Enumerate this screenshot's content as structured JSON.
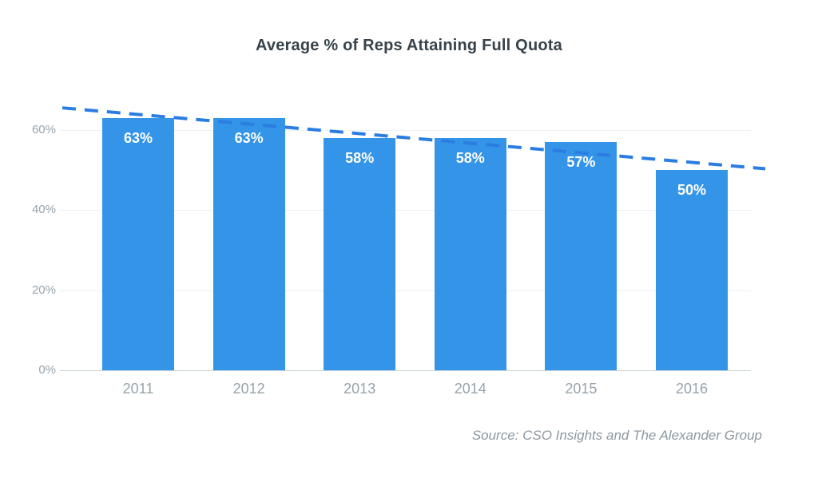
{
  "chart_data": {
    "type": "bar",
    "title": "Average % of Reps Attaining Full Quota",
    "categories": [
      "2011",
      "2012",
      "2013",
      "2014",
      "2015",
      "2016"
    ],
    "values": [
      63,
      63,
      58,
      58,
      57,
      50
    ],
    "bar_labels": [
      "63%",
      "63%",
      "58%",
      "58%",
      "57%",
      "50%"
    ],
    "y_ticks": [
      {
        "value": 60,
        "label": "60%"
      },
      {
        "value": 40,
        "label": "40%"
      },
      {
        "value": 20,
        "label": "20%"
      },
      {
        "value": 0,
        "label": "0%"
      }
    ],
    "ylim": [
      0,
      70
    ],
    "xlabel": "",
    "ylabel": "",
    "grid": "horizontal",
    "legend": "none",
    "trendline": {
      "style": "dashed",
      "start_value": 65.5,
      "end_value": 50.3
    },
    "source": "Source: CSO Insights and The Alexander Group",
    "colors": {
      "bar": "#3494e7",
      "trend": "#2b7de2",
      "title": "#37424a",
      "tick_label": "#97a3ab",
      "grid_line": "#edf0f2",
      "axis_line": "#c7d2d9",
      "bar_label": "#ffffff",
      "source_text": "#8c98a0"
    }
  }
}
